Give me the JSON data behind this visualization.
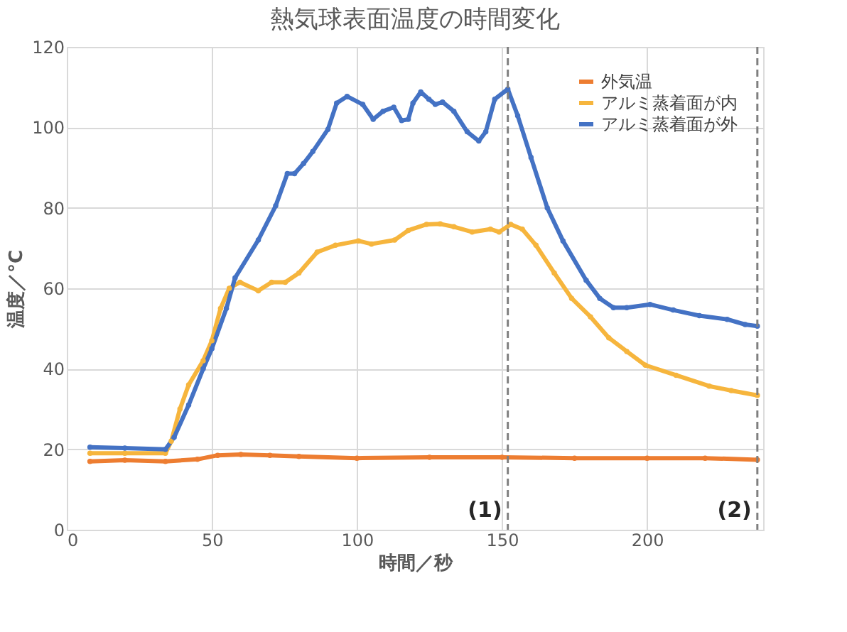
{
  "chart_data": {
    "type": "line",
    "title": "熱気球表面温度の時間変化",
    "xlabel": "時間／秒",
    "ylabel": "温度／°C",
    "xlim": [
      0,
      240
    ],
    "xticks": [
      0,
      50,
      100,
      150,
      200
    ],
    "ylim": [
      0,
      120
    ],
    "yticks": [
      0,
      20,
      40,
      60,
      80,
      100,
      120
    ],
    "grid": true,
    "legend": "top right",
    "marker": "circle",
    "line_style": "solid",
    "ref_lines": [
      {
        "axis": "x",
        "value": 152,
        "color": "#7f7f7f",
        "line_style": "dashed"
      },
      {
        "axis": "x",
        "value": 238,
        "color": "#7f7f7f",
        "line_style": "dashed"
      }
    ],
    "annotations": [
      {
        "text": "(1)",
        "x": 152,
        "y": 5
      },
      {
        "text": "(2)",
        "x": 238,
        "y": 5
      }
    ],
    "series": [
      {
        "name": "外気温",
        "color": "#ed7d31",
        "x": [
          8,
          20,
          34,
          45,
          52,
          60,
          70,
          80,
          100,
          125,
          150,
          175,
          200,
          220,
          238
        ],
        "values": [
          17,
          17.3,
          17,
          17.5,
          18.5,
          18.7,
          18.5,
          18.2,
          17.8,
          18,
          18,
          17.8,
          17.8,
          17.8,
          17.4
        ]
      },
      {
        "name": "アルミ蒸着面が内",
        "color": "#f6b53d",
        "x": [
          8,
          20,
          34,
          36,
          39,
          42,
          47,
          50,
          53,
          56,
          59.7,
          66,
          70.6,
          75.3,
          80,
          86.3,
          92.6,
          100.5,
          105,
          113,
          117.7,
          124,
          128.7,
          133.4,
          139.7,
          146,
          149,
          153,
          157,
          161.7,
          168,
          174,
          180.5,
          186.8,
          193,
          199.4,
          210,
          221.4,
          229,
          238
        ],
        "values": [
          19,
          19,
          19,
          22,
          30,
          36,
          42,
          47,
          55,
          60,
          61.5,
          59.4,
          61.5,
          61.5,
          63.8,
          69,
          70.7,
          71.8,
          71,
          72,
          74.4,
          75.9,
          76,
          75.3,
          74,
          74.7,
          74,
          75.9,
          74.7,
          70.7,
          63.8,
          57.5,
          52.9,
          47.7,
          44.3,
          40.9,
          38.4,
          35.7,
          34.6,
          33.4
        ]
      },
      {
        "name": "アルミ蒸着面が外",
        "color": "#4472c4",
        "x": [
          8,
          20,
          34,
          37,
          42,
          47,
          50,
          55,
          58,
          66,
          72,
          76,
          78.5,
          81.6,
          84.8,
          90,
          93,
          96.6,
          102,
          105.6,
          109,
          112.7,
          115.4,
          117.7,
          119.3,
          122,
          124.8,
          127,
          129.5,
          133.4,
          138,
          142,
          144.4,
          147.5,
          152,
          155.4,
          160,
          165.6,
          171,
          179,
          183.7,
          188.4,
          193,
          201,
          209,
          218,
          227.6,
          233.8,
          238
        ],
        "values": [
          20.5,
          20.3,
          20,
          23,
          31,
          40,
          45,
          55,
          62.6,
          72,
          80.5,
          88.5,
          88.5,
          91,
          94,
          99.5,
          106,
          107.7,
          105.7,
          102,
          104,
          105,
          101.7,
          102,
          106,
          108.8,
          107,
          105.7,
          106.3,
          104,
          98.9,
          96.6,
          98.9,
          107,
          109.5,
          102.9,
          92.5,
          80,
          71.8,
          62,
          57.5,
          55.2,
          55.2,
          56,
          54.6,
          53.2,
          52.3,
          51,
          50.6
        ]
      }
    ]
  }
}
